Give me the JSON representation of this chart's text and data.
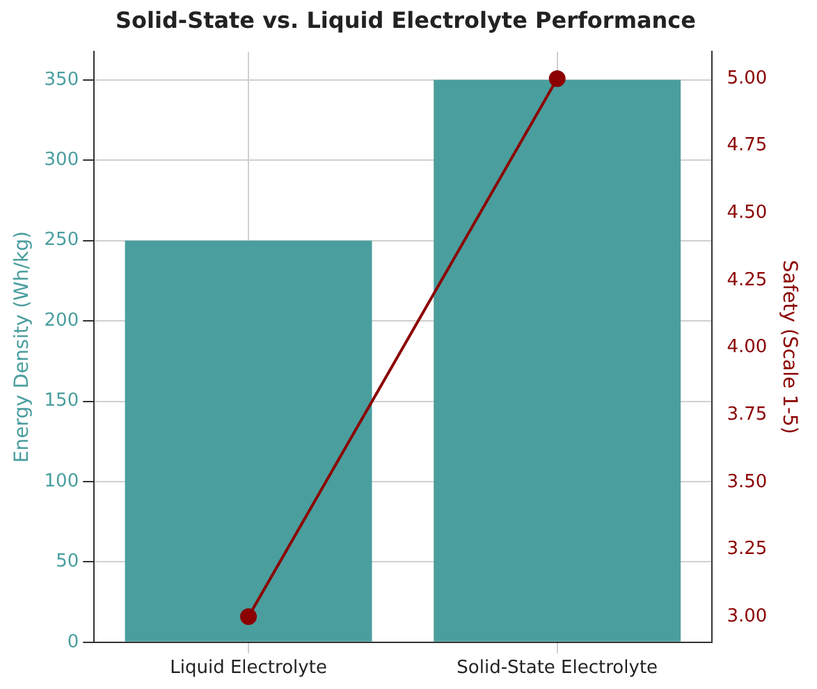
{
  "chart_data": {
    "type": "bar",
    "title": "Solid-State vs. Liquid Electrolyte Performance",
    "ylabel": "Energy Density (Wh/kg)",
    "y2label": "Safety (Scale 1-5)",
    "categories": [
      "Liquid Electrolyte",
      "Solid-State Electrolyte"
    ],
    "series": [
      {
        "color": "#4a9e9e",
        "values": [
          250,
          350
        ]
      },
      {
        "type": "line",
        "axis": "y2",
        "color": "#8b0000",
        "values": [
          3.0,
          5.0
        ]
      }
    ],
    "ylim": [
      0,
      367.5
    ],
    "yticks": [
      0,
      50,
      100,
      150,
      200,
      250,
      300,
      350
    ],
    "y2lim": [
      2.905,
      5.1
    ],
    "y2ticks": [
      {
        "value": 3,
        "label": "3.00"
      },
      {
        "value": 3.25,
        "label": "3.25"
      },
      {
        "value": 3.5,
        "label": "3.50"
      },
      {
        "value": 3.75,
        "label": "3.75"
      },
      {
        "value": 4,
        "label": "4.00"
      },
      {
        "value": 4.25,
        "label": "4.25"
      },
      {
        "value": 4.5,
        "label": "4.50"
      },
      {
        "value": 4.75,
        "label": "4.75"
      },
      {
        "value": 5,
        "label": "5.00"
      }
    ],
    "grid": true,
    "marker": "circle",
    "line_style": "solid"
  }
}
